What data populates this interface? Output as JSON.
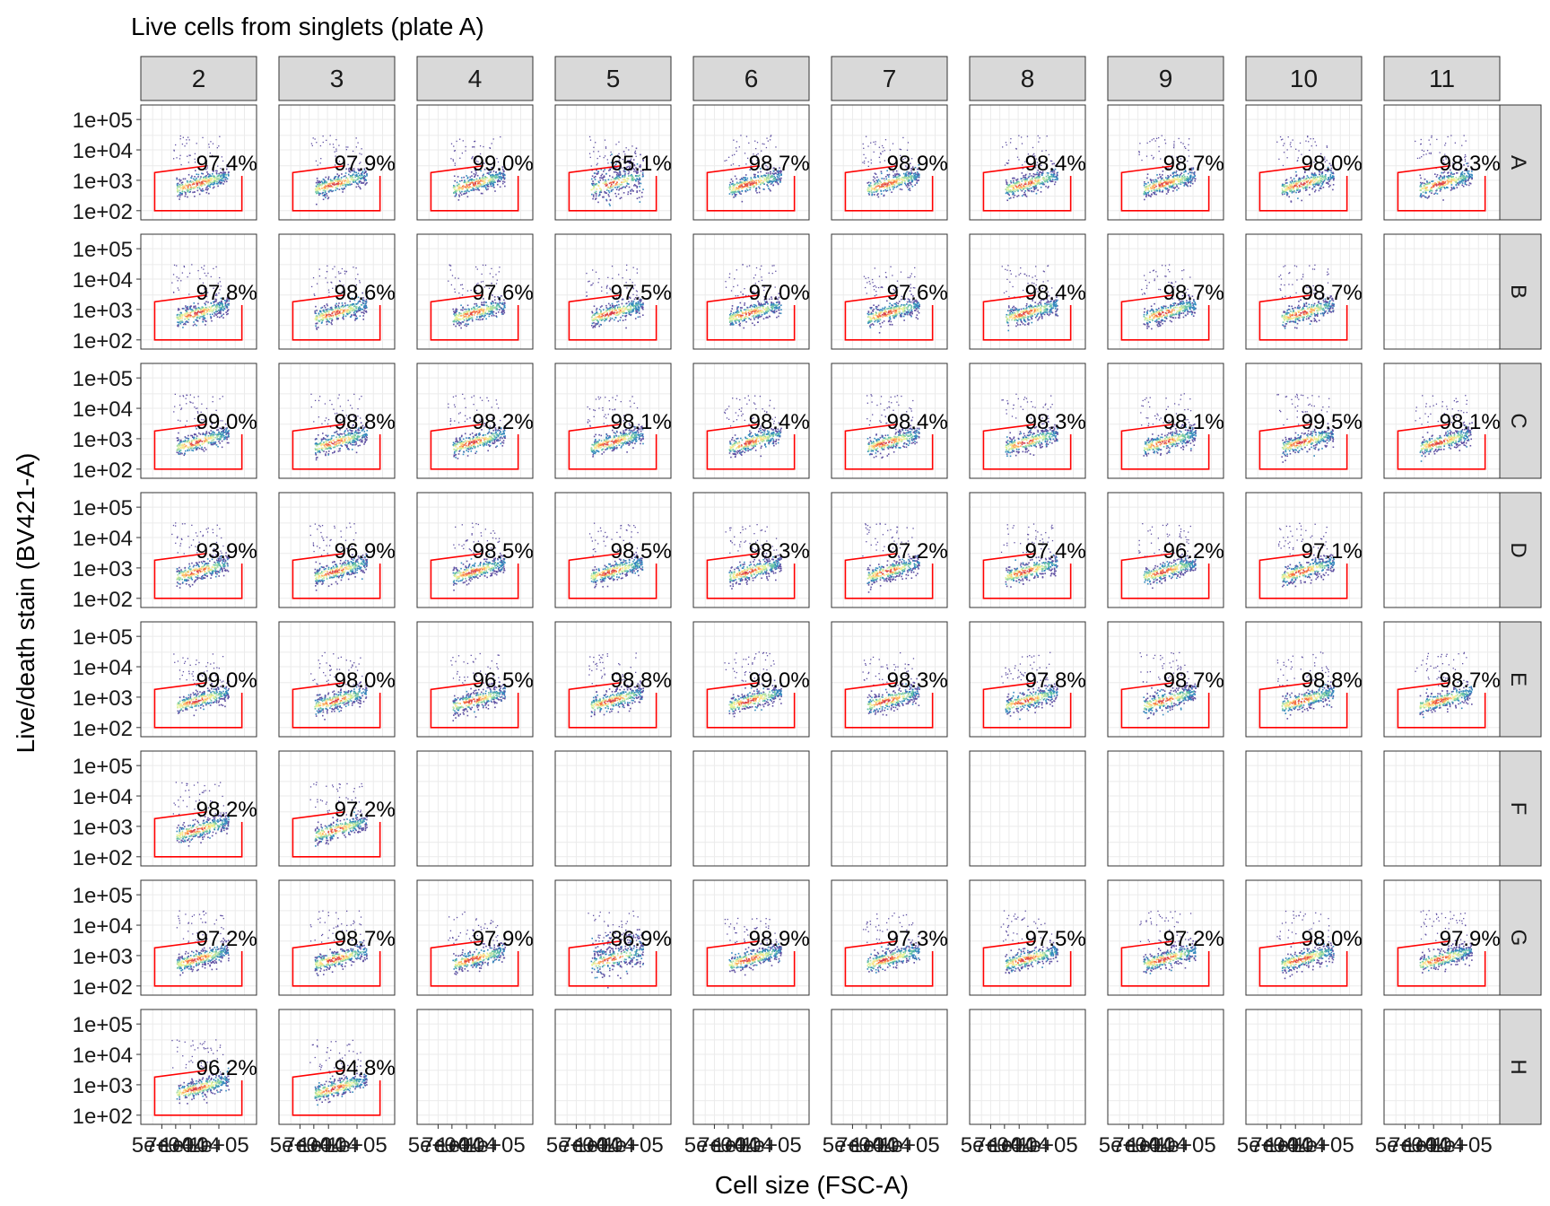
{
  "chart_data": {
    "type": "scatter",
    "title": "Live cells from singlets (plate A)",
    "xlabel": "Cell size (FSC-A)",
    "ylabel": "Live/death stain (BV421-A)",
    "x_scale": "log10",
    "y_scale": "log10",
    "xlim": [
      30000,
      500000
    ],
    "ylim": [
      50,
      300000
    ],
    "x_ticks": [
      "5e+04",
      "7e+04",
      "1e+04",
      "1e+05"
    ],
    "y_ticks": [
      "1e+05",
      "1e+04",
      "1e+03",
      "1e+02"
    ],
    "columns": [
      "2",
      "3",
      "4",
      "5",
      "6",
      "7",
      "8",
      "9",
      "10",
      "11"
    ],
    "rows": [
      "A",
      "B",
      "C",
      "D",
      "E",
      "F",
      "G",
      "H"
    ],
    "gate_color": "#ff0000",
    "panel_background": "#ffffff",
    "strip_background": "#d9d9d9",
    "density_colors": [
      "#5e4fa2",
      "#3288bd",
      "#66c2a5",
      "#abdda4",
      "#e6f598",
      "#fee08b",
      "#fdae61",
      "#f46d43",
      "#d53e4f"
    ],
    "gate_percentages": {
      "A": [
        "97.4%",
        "97.9%",
        "99.0%",
        "65.1%",
        "98.7%",
        "98.9%",
        "98.4%",
        "98.7%",
        "98.0%",
        "98.3%"
      ],
      "B": [
        "97.8%",
        "98.6%",
        "97.6%",
        "97.5%",
        "97.0%",
        "97.6%",
        "98.4%",
        "98.7%",
        "98.7%",
        null
      ],
      "C": [
        "99.0%",
        "98.8%",
        "98.2%",
        "98.1%",
        "98.4%",
        "98.4%",
        "98.3%",
        "98.1%",
        "99.5%",
        "98.1%"
      ],
      "D": [
        "93.9%",
        "96.9%",
        "98.5%",
        "98.5%",
        "98.3%",
        "97.2%",
        "97.4%",
        "96.2%",
        "97.1%",
        null
      ],
      "E": [
        "99.0%",
        "98.0%",
        "96.5%",
        "98.8%",
        "99.0%",
        "98.3%",
        "97.8%",
        "98.7%",
        "98.8%",
        "98.7%"
      ],
      "F": [
        "98.2%",
        "97.2%",
        null,
        null,
        null,
        null,
        null,
        null,
        null,
        null
      ],
      "G": [
        "97.2%",
        "98.7%",
        "97.9%",
        "86.9%",
        "98.9%",
        "97.3%",
        "97.5%",
        "97.2%",
        "98.0%",
        "97.9%"
      ],
      "H": [
        "96.2%",
        "94.8%",
        null,
        null,
        null,
        null,
        null,
        null,
        null,
        null
      ]
    }
  }
}
